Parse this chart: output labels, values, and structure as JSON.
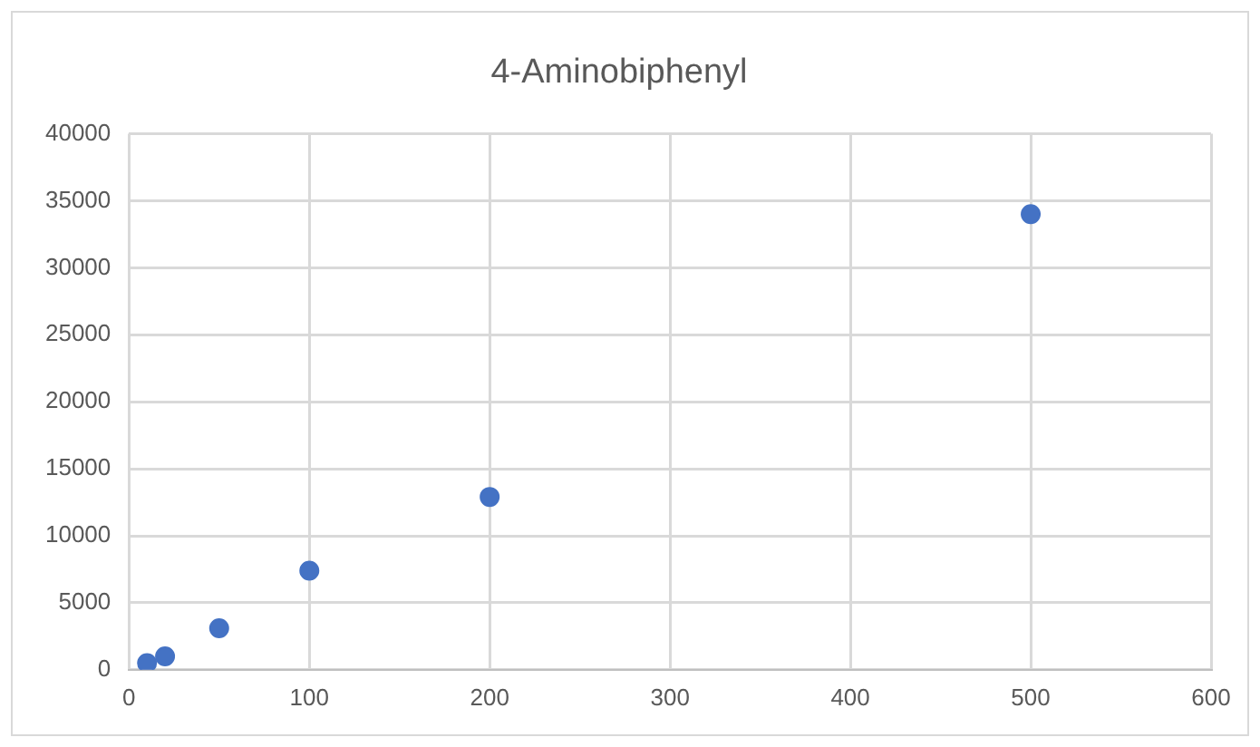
{
  "chart_data": {
    "type": "scatter",
    "title": "4-Aminobiphenyl",
    "x": [
      10,
      20,
      50,
      100,
      200,
      500
    ],
    "series": [
      {
        "color": "#4472c4",
        "values": [
          500,
          1000,
          3100,
          7400,
          12900,
          34000
        ]
      }
    ],
    "xlim": [
      0,
      600
    ],
    "xticks": [
      0,
      100,
      200,
      300,
      400,
      500,
      600
    ],
    "ylim": [
      0,
      40000
    ],
    "yticks": [
      0,
      5000,
      10000,
      15000,
      20000,
      25000,
      30000,
      35000,
      40000
    ],
    "grid": true,
    "marker": "circle",
    "legend": false
  }
}
